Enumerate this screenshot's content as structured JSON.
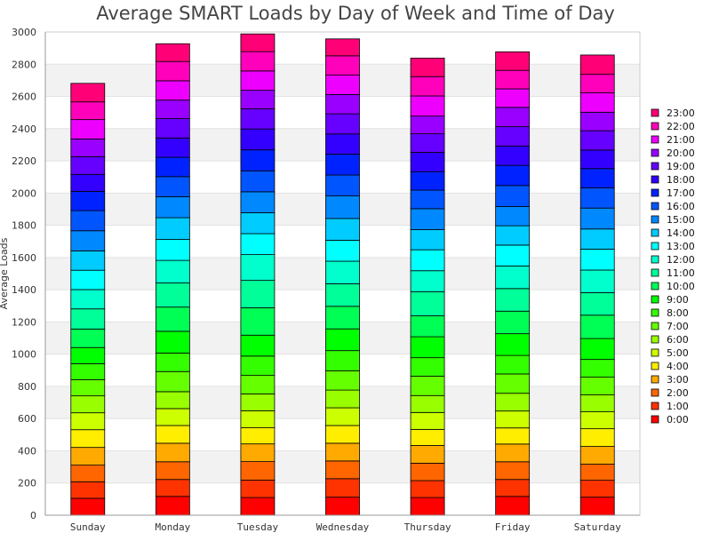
{
  "chart_data": {
    "type": "bar",
    "stacked": true,
    "title": "Average SMART Loads by Day of Week and Time of Day",
    "xlabel": "",
    "ylabel": "Average Loads",
    "ylim": [
      0,
      3000
    ],
    "yticks": [
      0,
      200,
      400,
      600,
      800,
      1000,
      1200,
      1400,
      1600,
      1800,
      2000,
      2200,
      2400,
      2600,
      2800,
      3000
    ],
    "grid": "horizontal bands",
    "legend_position": "right",
    "categories": [
      "Sunday",
      "Monday",
      "Tuesday",
      "Wednesday",
      "Thursday",
      "Friday",
      "Saturday"
    ],
    "series": [
      {
        "name": "0:00",
        "color": "#ff0000",
        "values": [
          105,
          117,
          110,
          112,
          110,
          117,
          112
        ]
      },
      {
        "name": "1:00",
        "color": "#ff3300",
        "values": [
          103,
          105,
          108,
          115,
          105,
          105,
          105
        ]
      },
      {
        "name": "2:00",
        "color": "#ff6600",
        "values": [
          103,
          110,
          115,
          110,
          108,
          110,
          100
        ]
      },
      {
        "name": "3:00",
        "color": "#ffaa00",
        "values": [
          110,
          115,
          110,
          110,
          110,
          110,
          110
        ]
      },
      {
        "name": "4:00",
        "color": "#ffee00",
        "values": [
          110,
          110,
          100,
          110,
          100,
          100,
          110
        ]
      },
      {
        "name": "5:00",
        "color": "#ccff00",
        "values": [
          105,
          105,
          105,
          110,
          105,
          105,
          105
        ]
      },
      {
        "name": "6:00",
        "color": "#99ff00",
        "values": [
          105,
          105,
          105,
          110,
          105,
          110,
          105
        ]
      },
      {
        "name": "7:00",
        "color": "#66ff00",
        "values": [
          100,
          125,
          115,
          120,
          120,
          120,
          110
        ]
      },
      {
        "name": "8:00",
        "color": "#33ff00",
        "values": [
          100,
          115,
          120,
          125,
          115,
          115,
          110
        ]
      },
      {
        "name": "9:00",
        "color": "#00ff00",
        "values": [
          100,
          135,
          130,
          135,
          130,
          135,
          130
        ]
      },
      {
        "name": "10:00",
        "color": "#00ff55",
        "values": [
          115,
          150,
          170,
          140,
          130,
          140,
          145
        ]
      },
      {
        "name": "11:00",
        "color": "#00ff99",
        "values": [
          125,
          150,
          170,
          140,
          150,
          140,
          140
        ]
      },
      {
        "name": "12:00",
        "color": "#00ffcc",
        "values": [
          120,
          140,
          160,
          140,
          130,
          140,
          140
        ]
      },
      {
        "name": "13:00",
        "color": "#00ffff",
        "values": [
          120,
          130,
          130,
          130,
          130,
          130,
          130
        ]
      },
      {
        "name": "14:00",
        "color": "#00ccff",
        "values": [
          120,
          135,
          130,
          135,
          125,
          120,
          125
        ]
      },
      {
        "name": "15:00",
        "color": "#0088ff",
        "values": [
          125,
          130,
          130,
          140,
          130,
          120,
          130
        ]
      },
      {
        "name": "16:00",
        "color": "#0055ff",
        "values": [
          125,
          125,
          130,
          130,
          115,
          130,
          125
        ]
      },
      {
        "name": "17:00",
        "color": "#0022ff",
        "values": [
          120,
          120,
          130,
          130,
          115,
          125,
          120
        ]
      },
      {
        "name": "18:00",
        "color": "#3300ff",
        "values": [
          105,
          120,
          130,
          125,
          120,
          120,
          115
        ]
      },
      {
        "name": "19:00",
        "color": "#6600ff",
        "values": [
          110,
          120,
          125,
          125,
          115,
          120,
          120
        ]
      },
      {
        "name": "20:00",
        "color": "#9900ff",
        "values": [
          110,
          115,
          115,
          120,
          110,
          120,
          115
        ]
      },
      {
        "name": "21:00",
        "color": "#ee00ff",
        "values": [
          120,
          120,
          120,
          120,
          125,
          115,
          120
        ]
      },
      {
        "name": "22:00",
        "color": "#ff00bb",
        "values": [
          110,
          120,
          120,
          120,
          120,
          115,
          115
        ]
      },
      {
        "name": "23:00",
        "color": "#ff0077",
        "values": [
          115,
          110,
          110,
          105,
          115,
          115,
          120
        ]
      }
    ]
  }
}
